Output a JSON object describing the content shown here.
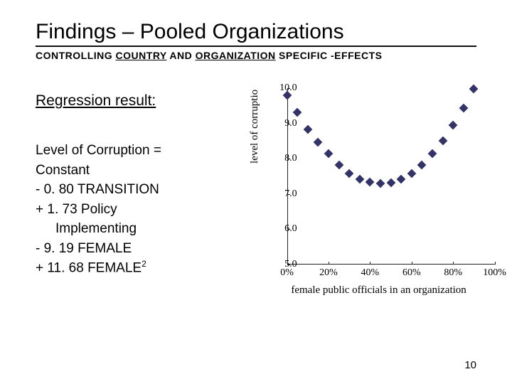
{
  "title": "Findings – Pooled Organizations",
  "subtitle_parts": {
    "pre": "CONTROLLING ",
    "ul1": "COUNTRY",
    "mid": " AND ",
    "ul2": "ORGANIZATION",
    "post": " SPECIFIC -EFFECTS"
  },
  "regression_heading": "Regression result:",
  "equation": {
    "lhs": "Level of Corruption =",
    "l1": "Constant",
    "l2": "- 0. 80 TRANSITION",
    "l3": "+ 1. 73 Policy",
    "l3b": "Implementing",
    "l4": "- 9. 19 FEMALE",
    "l5a": "+ 11. 68 FEMALE",
    "l5sup": "2"
  },
  "page_number": "10",
  "chart": {
    "type": "scatter",
    "ylabel": "level of corruptio",
    "xlabel": "female public officials in an organization",
    "background_color": "#ffffff",
    "axis_color": "#222222",
    "tick_font_family": "Times New Roman",
    "marker_color": "#333366",
    "marker_shape": "diamond",
    "marker_size": 9,
    "ylim": [
      5.0,
      10.0
    ],
    "ytick_step": 1.0,
    "yticks": [
      {
        "v": 5.0,
        "label": "5.0"
      },
      {
        "v": 6.0,
        "label": "6.0"
      },
      {
        "v": 7.0,
        "label": "7.0"
      },
      {
        "v": 8.0,
        "label": "8.0"
      },
      {
        "v": 9.0,
        "label": "9.0"
      },
      {
        "v": 10.0,
        "label": "10.0"
      }
    ],
    "xlim": [
      0,
      100
    ],
    "xticks": [
      {
        "v": 0,
        "label": "0%"
      },
      {
        "v": 20,
        "label": "20%"
      },
      {
        "v": 40,
        "label": "40%"
      },
      {
        "v": 60,
        "label": "60%"
      },
      {
        "v": 80,
        "label": "80%"
      },
      {
        "v": 100,
        "label": "100%"
      }
    ],
    "points": [
      {
        "x": 0,
        "y": 9.79
      },
      {
        "x": 5,
        "y": 9.31
      },
      {
        "x": 10,
        "y": 8.84
      },
      {
        "x": 15,
        "y": 8.47
      },
      {
        "x": 20,
        "y": 8.14
      },
      {
        "x": 25,
        "y": 7.82
      },
      {
        "x": 30,
        "y": 7.58
      },
      {
        "x": 35,
        "y": 7.41
      },
      {
        "x": 40,
        "y": 7.33
      },
      {
        "x": 45,
        "y": 7.29
      },
      {
        "x": 50,
        "y": 7.32
      },
      {
        "x": 55,
        "y": 7.42
      },
      {
        "x": 60,
        "y": 7.59
      },
      {
        "x": 65,
        "y": 7.83
      },
      {
        "x": 70,
        "y": 8.14
      },
      {
        "x": 75,
        "y": 8.51
      },
      {
        "x": 80,
        "y": 8.95
      },
      {
        "x": 85,
        "y": 9.44
      },
      {
        "x": 90,
        "y": 9.98
      }
    ]
  }
}
